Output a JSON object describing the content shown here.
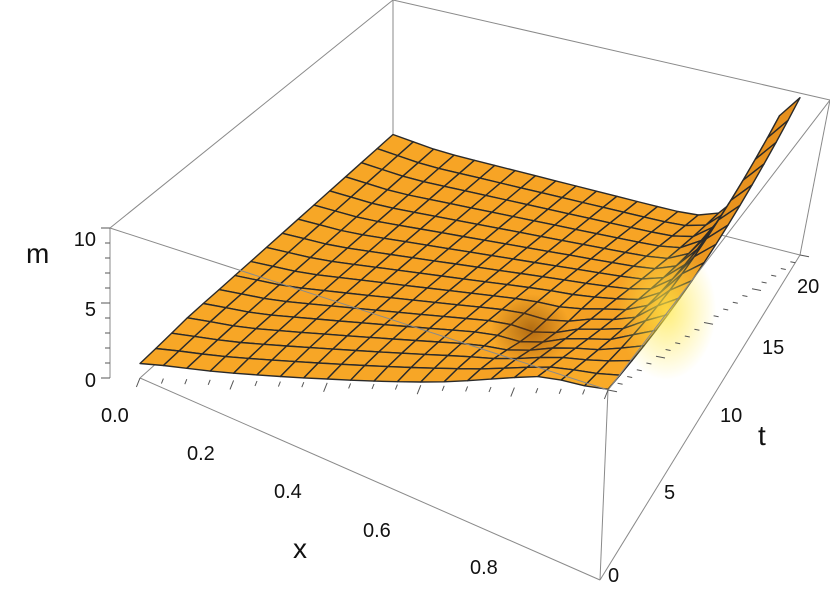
{
  "chart_data": {
    "type": "surface3d",
    "xlabel": "x",
    "ylabel": "t",
    "zlabel": "m",
    "xlim": [
      0,
      1
    ],
    "tlim": [
      0,
      20
    ],
    "zlim": [
      0,
      10
    ],
    "x_ticks": [
      "0.0",
      "0.2",
      "0.4",
      "0.6",
      "0.8"
    ],
    "t_ticks": [
      "0",
      "5",
      "10",
      "15",
      "20"
    ],
    "z_ticks": [
      "0",
      "5",
      "10"
    ],
    "x_samples": [
      0,
      0.05,
      0.1,
      0.15,
      0.2,
      0.25,
      0.3,
      0.35,
      0.4,
      0.45,
      0.5,
      0.55,
      0.6,
      0.65,
      0.7,
      0.75,
      0.8,
      0.85,
      0.9,
      0.95,
      1.0
    ],
    "t_samples": [
      0,
      1.25,
      2.5,
      3.75,
      5,
      6.25,
      7.5,
      8.75,
      10,
      11.25,
      12.5,
      13.75,
      15,
      16.25,
      17.5,
      18.75,
      20
    ],
    "m_at_t0": [
      1.0,
      0.9,
      0.75,
      0.6,
      0.5,
      0.42,
      0.35,
      0.3,
      0.26,
      0.22,
      0.2,
      0.2,
      0.22,
      0.28,
      0.4,
      0.55,
      0.7,
      0.8,
      0.6,
      0.25,
      0.05
    ],
    "m_peak_at_x1": 10.0,
    "m_plateau": 1.0,
    "colors": {
      "surface": "#f7a425",
      "surface_light": "#ffd23c",
      "surface_dark": "#c86d0e",
      "mesh": "#2a2a2a",
      "box": "#8a8a8a"
    }
  }
}
